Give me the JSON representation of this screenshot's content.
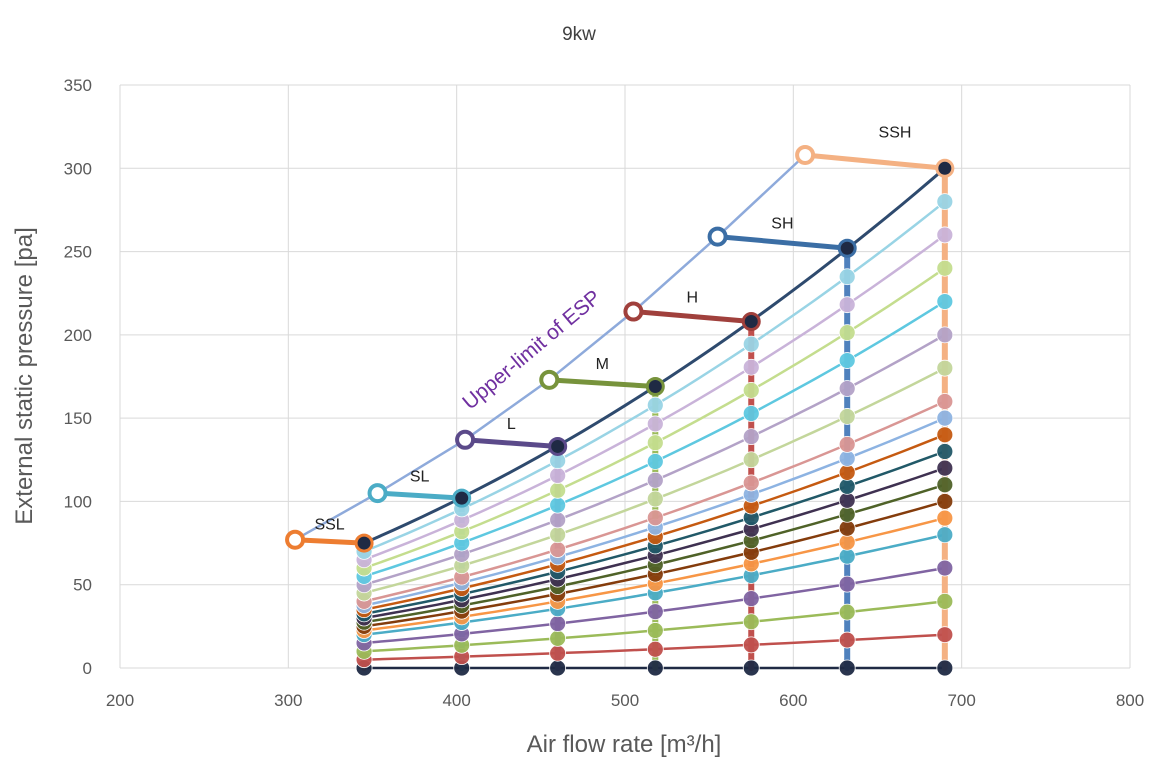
{
  "chart_data": {
    "type": "line",
    "title": "9kw",
    "xlabel": "Air flow rate [m³/h]",
    "ylabel": "External static pressure [pa]",
    "xlim": [
      200,
      800
    ],
    "ylim": [
      0,
      350
    ],
    "xticks": [
      "200",
      "300",
      "400",
      "500",
      "600",
      "700",
      "800"
    ],
    "yticks": [
      "0",
      "50",
      "100",
      "150",
      "200",
      "250",
      "300",
      "350"
    ],
    "grid": true,
    "x": [
      345,
      403,
      460,
      518,
      575,
      632,
      690
    ],
    "line_values_at_690": [
      0,
      20,
      40,
      60,
      80,
      90,
      100,
      110,
      120,
      130,
      140,
      150,
      160,
      180,
      200,
      220,
      240,
      260,
      280,
      300
    ],
    "line_colors": [
      "#1f2a44",
      "#c0504d",
      "#9bbb59",
      "#8064a2",
      "#4bacc6",
      "#f79646",
      "#843c0c",
      "#4f6228",
      "#3f3151",
      "#215968",
      "#c55a11",
      "#8db3e2",
      "#d99694",
      "#c3d69b",
      "#b3a2c7",
      "#5ec8e0",
      "#c4dd8e",
      "#c9b3d9",
      "#99d4e5",
      "#2e4a6e"
    ],
    "vertical_line_colors": [
      "#f79646",
      "#4bacc6",
      "#8064a2",
      "#9bbb59",
      "#c0504d",
      "#4f81bd",
      "#f4b183"
    ],
    "upper_limit": {
      "label": "Upper-limit of ESP",
      "color": "#8eaadb",
      "points": [
        [
          304,
          77
        ],
        [
          353,
          105
        ],
        [
          405,
          137
        ],
        [
          455,
          173
        ],
        [
          505,
          214
        ],
        [
          555,
          259
        ],
        [
          607,
          308
        ]
      ]
    },
    "speed_steps": [
      {
        "label": "SSL",
        "color": "#ed7d31",
        "from": [
          304,
          77
        ],
        "to": [
          345,
          75
        ]
      },
      {
        "label": "SL",
        "color": "#4bacc6",
        "from": [
          353,
          105
        ],
        "to": [
          403,
          102
        ]
      },
      {
        "label": "L",
        "color": "#5b4a8a",
        "from": [
          405,
          137
        ],
        "to": [
          460,
          133
        ]
      },
      {
        "label": "M",
        "color": "#77933c",
        "from": [
          455,
          173
        ],
        "to": [
          518,
          169
        ]
      },
      {
        "label": "H",
        "color": "#a0403c",
        "from": [
          505,
          214
        ],
        "to": [
          575,
          208
        ]
      },
      {
        "label": "SH",
        "color": "#3b6ea5",
        "from": [
          555,
          259
        ],
        "to": [
          632,
          252
        ]
      },
      {
        "label": "SSH",
        "color": "#f4b183",
        "from": [
          607,
          308
        ],
        "to": [
          690,
          300
        ]
      }
    ]
  }
}
